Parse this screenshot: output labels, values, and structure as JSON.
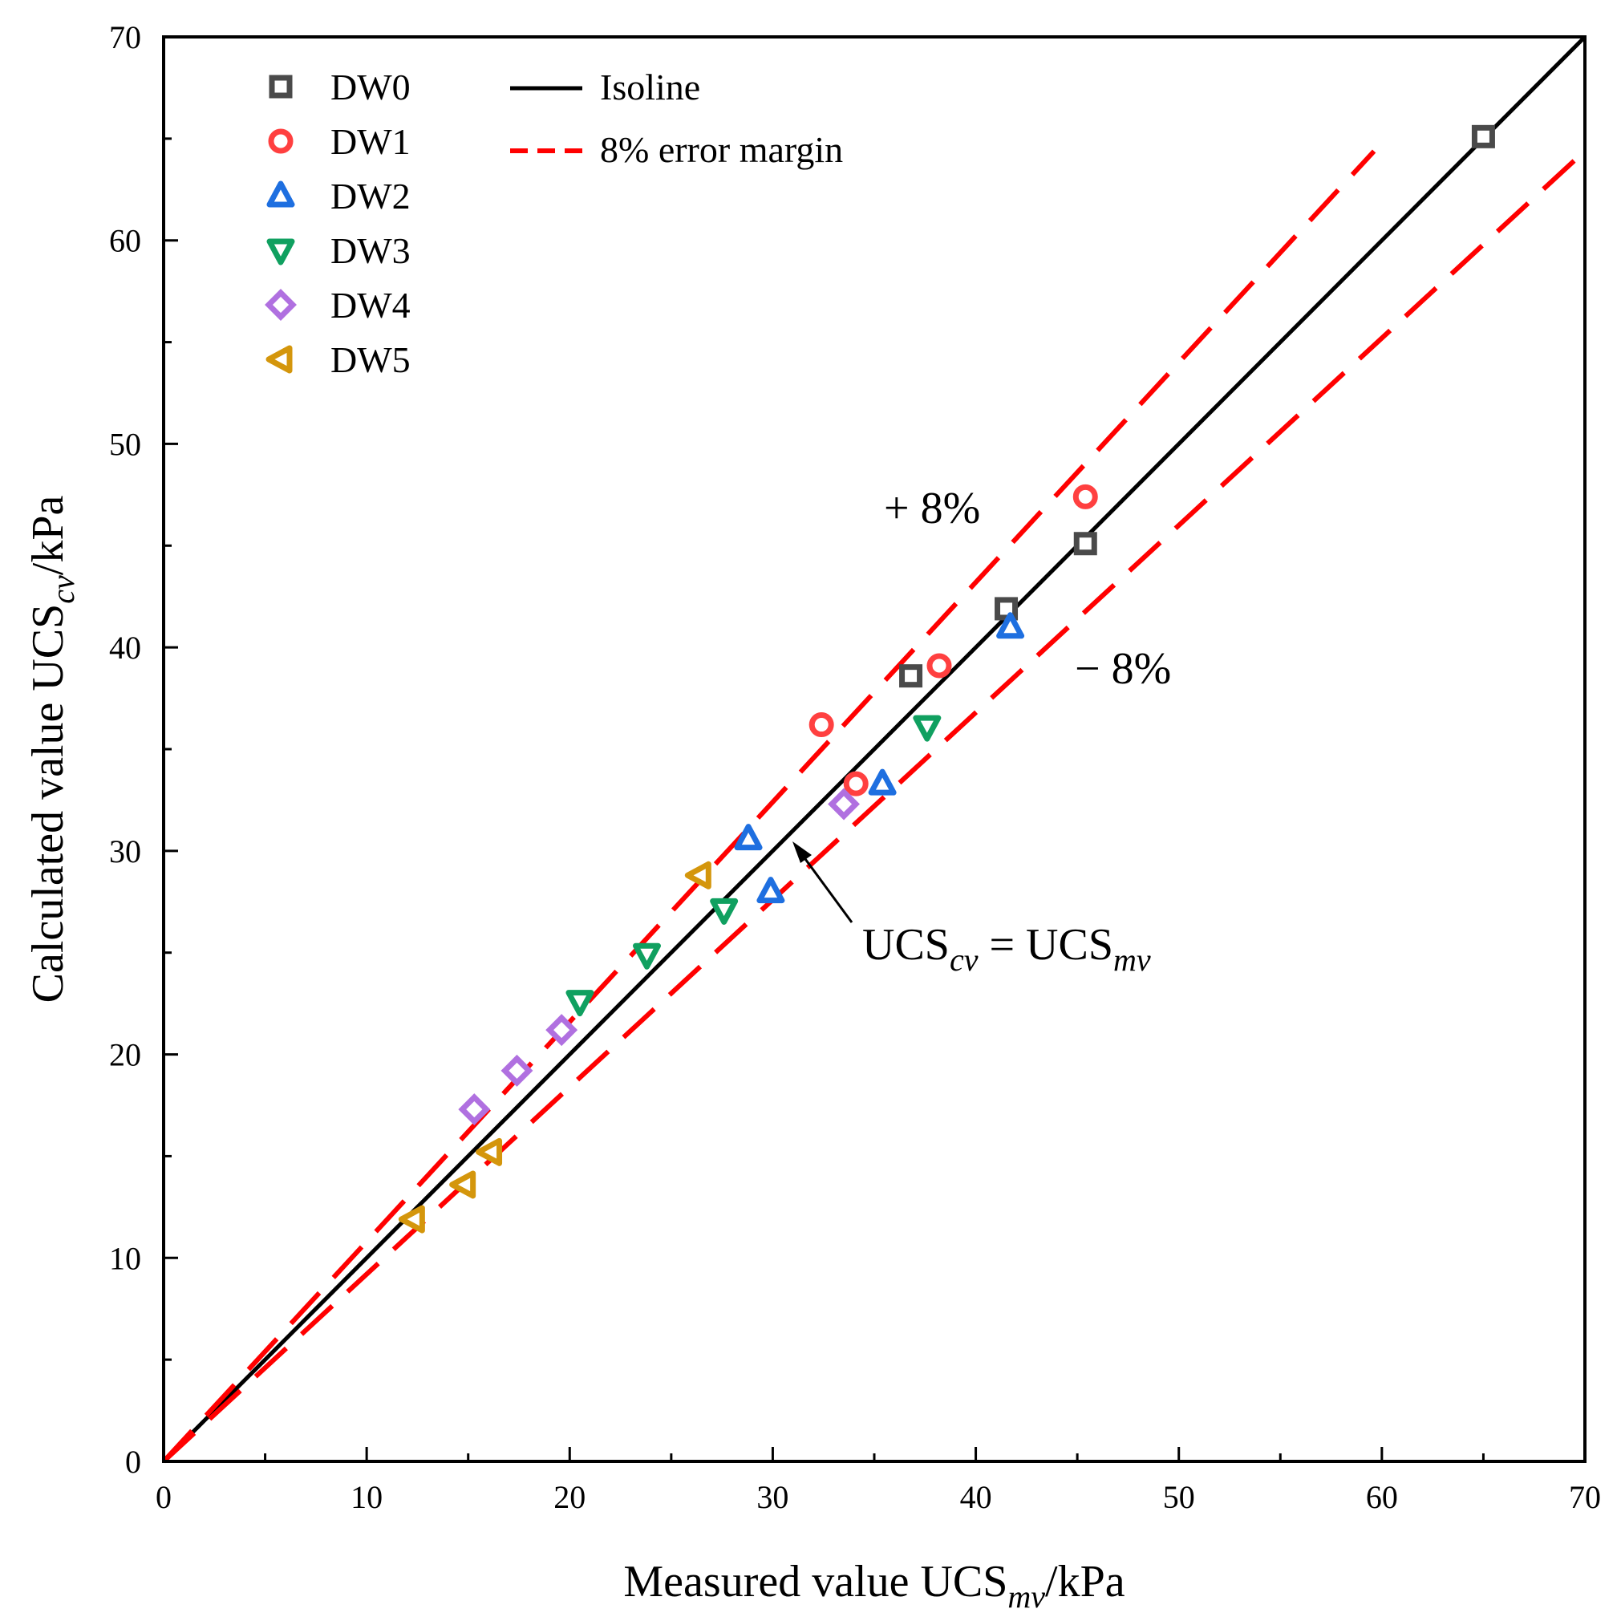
{
  "chart_data": {
    "type": "scatter",
    "title": "",
    "xlabel": {
      "main": "Measured value UCS",
      "sub": "mv",
      "tail": "/kPa"
    },
    "ylabel": {
      "main": "Calculated value UCS",
      "sub": "cv",
      "tail": "/kPa"
    },
    "xlim": [
      0,
      70
    ],
    "ylim": [
      0,
      70
    ],
    "xticks": [
      0,
      10,
      20,
      30,
      40,
      50,
      60,
      70
    ],
    "yticks": [
      0,
      10,
      20,
      30,
      40,
      50,
      60,
      70
    ],
    "x_tick_labels": [
      "0",
      "10",
      "20",
      "30",
      "40",
      "50",
      "60",
      "70"
    ],
    "y_tick_labels": [
      "0",
      "10",
      "20",
      "30",
      "40",
      "50",
      "60",
      "70"
    ],
    "grid": false,
    "legend_position": "top-left",
    "series": [
      {
        "name": "DW0",
        "marker": "square",
        "color": "#4a4a4a",
        "points": [
          [
            36.8,
            38.6
          ],
          [
            41.5,
            41.9
          ],
          [
            45.4,
            45.1
          ],
          [
            65.0,
            65.1
          ]
        ]
      },
      {
        "name": "DW1",
        "marker": "circle",
        "color": "#ff4040",
        "points": [
          [
            32.4,
            36.2
          ],
          [
            34.1,
            33.3
          ],
          [
            38.2,
            39.1
          ],
          [
            45.4,
            47.4
          ]
        ]
      },
      {
        "name": "DW2",
        "marker": "triangle-up",
        "color": "#1e6fe0",
        "points": [
          [
            28.8,
            30.6
          ],
          [
            29.9,
            28.0
          ],
          [
            35.4,
            33.3
          ],
          [
            41.7,
            41.0
          ]
        ]
      },
      {
        "name": "DW3",
        "marker": "triangle-down",
        "color": "#10a060",
        "points": [
          [
            20.5,
            22.6
          ],
          [
            23.8,
            24.9
          ],
          [
            27.6,
            27.1
          ],
          [
            37.6,
            36.1
          ]
        ]
      },
      {
        "name": "DW4",
        "marker": "diamond",
        "color": "#b070e0",
        "points": [
          [
            15.3,
            17.3
          ],
          [
            17.4,
            19.2
          ],
          [
            19.6,
            21.2
          ],
          [
            33.5,
            32.3
          ]
        ]
      },
      {
        "name": "DW5",
        "marker": "triangle-left",
        "color": "#d4960c",
        "points": [
          [
            12.3,
            11.9
          ],
          [
            14.8,
            13.6
          ],
          [
            16.1,
            15.2
          ],
          [
            26.4,
            28.8
          ]
        ]
      }
    ],
    "lines": [
      {
        "name": "Isoline",
        "style": "solid",
        "color": "#000000",
        "slope": 1.0
      },
      {
        "name": "8% error margin",
        "style": "dashed",
        "color": "#ff0000",
        "slope_upper": 1.08,
        "slope_lower": 0.92
      }
    ],
    "annotations": {
      "plus": "+ 8%",
      "minus": "− 8%",
      "equation": {
        "p1": "UCS",
        "s1": "cv",
        "mid": " = UCS",
        "s2": "mv"
      }
    }
  }
}
